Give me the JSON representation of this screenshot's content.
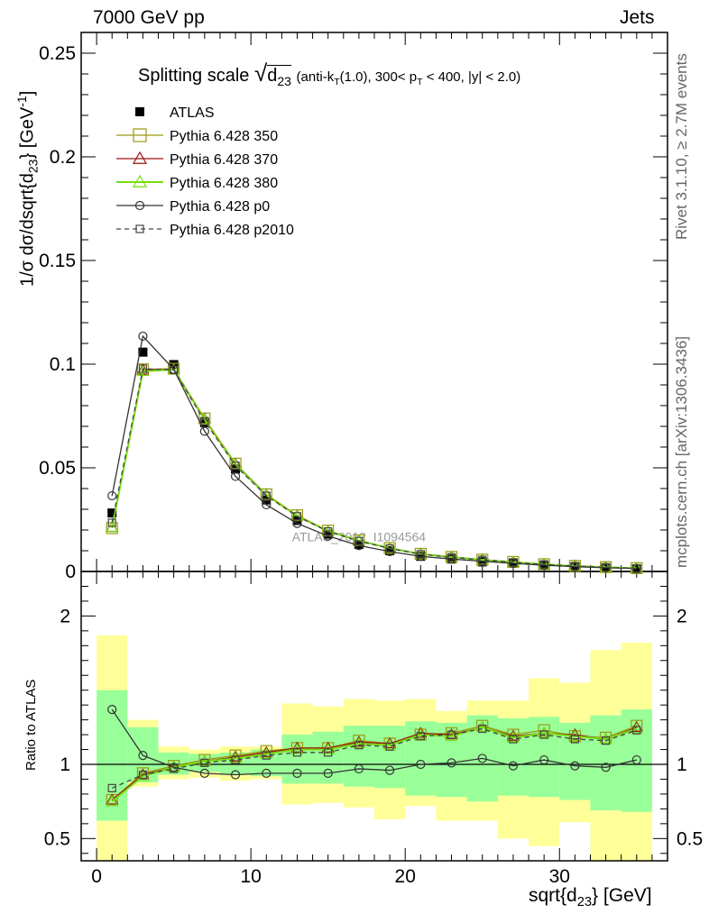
{
  "header": {
    "left": "7000 GeV pp",
    "right": "Jets"
  },
  "side_labels": {
    "top": "Rivet 3.1.10, ≥ 2.7M events",
    "bottom": "mcplots.cern.ch [arXiv:1306.3436]"
  },
  "watermark": "ATLAS_2012_I1094564",
  "chart_data": [
    {
      "type": "line",
      "panel": "main",
      "title": "Splitting scale √d23 (anti-kT(1.0), 300< pT < 400, |y| < 2.0)",
      "title_main": "Splitting scale",
      "title_sub": "(anti-k",
      "ylabel": "1/σ dσ/dsqrt{d23} [GeV-1]",
      "xlabel": "sqrt{d23} [GeV]",
      "xlim": [
        -1,
        37
      ],
      "ylim": [
        0,
        0.26
      ],
      "yticks": [
        0,
        0.05,
        0.1,
        0.15,
        0.2,
        0.25
      ],
      "ytick_labels": [
        "0",
        "0.05",
        "0.1",
        "0.15",
        "0.2",
        "0.25"
      ],
      "xticks": [
        0,
        10,
        20,
        30
      ],
      "xtick_labels": [
        "0",
        "10",
        "20",
        "30"
      ],
      "x": [
        1,
        3,
        5,
        7,
        9,
        11,
        13,
        15,
        17,
        19,
        21,
        23,
        25,
        27,
        29,
        31,
        33,
        35
      ],
      "series": [
        {
          "name": "ATLAS",
          "color": "#000000",
          "marker": "filled-square",
          "line": "none",
          "values": [
            0.0282,
            0.1058,
            0.0998,
            0.0718,
            0.0494,
            0.0345,
            0.0246,
            0.018,
            0.013,
            0.01,
            0.0073,
            0.006,
            0.0046,
            0.0039,
            0.0029,
            0.0023,
            0.0018,
            0.0013
          ]
        },
        {
          "name": "Pythia 6.428 350",
          "color": "#9a9a10",
          "marker": "open-square",
          "line": "solid",
          "values": [
            0.0209,
            0.0975,
            0.0978,
            0.0738,
            0.052,
            0.0372,
            0.0271,
            0.0197,
            0.015,
            0.0113,
            0.0085,
            0.007,
            0.0057,
            0.0046,
            0.0035,
            0.0027,
            0.0021,
            0.0016
          ]
        },
        {
          "name": "Pythia 6.428 370",
          "color": "#9b1111",
          "marker": "open-triangle",
          "line": "solid",
          "values": [
            0.0213,
            0.0972,
            0.0975,
            0.0735,
            0.0518,
            0.037,
            0.027,
            0.0196,
            0.0149,
            0.0113,
            0.0085,
            0.007,
            0.0057,
            0.0045,
            0.0034,
            0.0027,
            0.0021,
            0.0016
          ]
        },
        {
          "name": "Pythia 6.428 380",
          "color": "#77dd11",
          "marker": "open-triangle",
          "line": "solid",
          "values": [
            0.0212,
            0.0965,
            0.0974,
            0.0732,
            0.0515,
            0.0368,
            0.0268,
            0.0195,
            0.0148,
            0.0112,
            0.0084,
            0.0069,
            0.0056,
            0.0045,
            0.0034,
            0.0026,
            0.002,
            0.0016
          ]
        },
        {
          "name": "Pythia 6.428 p0",
          "color": "#333333",
          "marker": "open-circle",
          "line": "solid",
          "values": [
            0.0365,
            0.1135,
            0.0975,
            0.0676,
            0.0459,
            0.0322,
            0.0232,
            0.0171,
            0.0125,
            0.0096,
            0.0073,
            0.006,
            0.0049,
            0.0039,
            0.003,
            0.0023,
            0.0018,
            0.0014
          ]
        },
        {
          "name": "Pythia 6.428 p2010",
          "color": "#444444",
          "marker": "open-square",
          "line": "dashed",
          "values": [
            0.0235,
            0.0978,
            0.0972,
            0.0725,
            0.051,
            0.0365,
            0.0266,
            0.0193,
            0.0147,
            0.0111,
            0.0083,
            0.0068,
            0.0056,
            0.0044,
            0.0034,
            0.0026,
            0.002,
            0.0015
          ]
        }
      ]
    },
    {
      "type": "line",
      "panel": "ratio",
      "ylabel": "Ratio to ATLAS",
      "xlabel": "sqrt{d23} [GeV]",
      "xlim": [
        -1,
        37
      ],
      "ylim": [
        0.35,
        2.3
      ],
      "yticks": [
        0.5,
        1,
        2
      ],
      "ytick_labels": [
        "0.5",
        "1",
        "2"
      ],
      "xticks": [
        0,
        10,
        20,
        30
      ],
      "xtick_labels": [
        "0",
        "10",
        "20",
        "30"
      ],
      "bins": [
        [
          0,
          2
        ],
        [
          2,
          4
        ],
        [
          4,
          6
        ],
        [
          6,
          8
        ],
        [
          8,
          10
        ],
        [
          10,
          12
        ],
        [
          12,
          14
        ],
        [
          14,
          16
        ],
        [
          16,
          18
        ],
        [
          18,
          20
        ],
        [
          20,
          22
        ],
        [
          22,
          24
        ],
        [
          24,
          26
        ],
        [
          26,
          28
        ],
        [
          28,
          30
        ],
        [
          30,
          32
        ],
        [
          32,
          34
        ],
        [
          34,
          36
        ]
      ],
      "band_inner": [
        [
          0.62,
          1.5
        ],
        [
          0.88,
          1.25
        ],
        [
          0.93,
          1.08
        ],
        [
          0.95,
          1.07
        ],
        [
          0.93,
          1.08
        ],
        [
          0.92,
          1.1
        ],
        [
          0.87,
          1.2
        ],
        [
          0.87,
          1.22
        ],
        [
          0.85,
          1.26
        ],
        [
          0.84,
          1.26
        ],
        [
          0.79,
          1.29
        ],
        [
          0.78,
          1.28
        ],
        [
          0.75,
          1.33
        ],
        [
          0.79,
          1.31
        ],
        [
          0.78,
          1.32
        ],
        [
          0.76,
          1.28
        ],
        [
          0.69,
          1.33
        ],
        [
          0.68,
          1.37
        ]
      ],
      "band_outer": [
        [
          0.35,
          1.87
        ],
        [
          0.85,
          1.3
        ],
        [
          0.9,
          1.12
        ],
        [
          0.91,
          1.1
        ],
        [
          0.89,
          1.12
        ],
        [
          0.9,
          1.12
        ],
        [
          0.73,
          1.41
        ],
        [
          0.74,
          1.39
        ],
        [
          0.71,
          1.44
        ],
        [
          0.63,
          1.43
        ],
        [
          0.72,
          1.44
        ],
        [
          0.62,
          1.36
        ],
        [
          0.62,
          1.43
        ],
        [
          0.5,
          1.43
        ],
        [
          0.45,
          1.58
        ],
        [
          0.61,
          1.55
        ],
        [
          0.35,
          1.77
        ],
        [
          0.35,
          1.82
        ]
      ],
      "series": [
        {
          "name": "Pythia 6.428 350",
          "color": "#9a9a10",
          "marker": "open-square",
          "line": "solid",
          "values": [
            0.76,
            0.94,
            0.99,
            1.03,
            1.06,
            1.09,
            1.11,
            1.11,
            1.16,
            1.14,
            1.2,
            1.21,
            1.26,
            1.2,
            1.23,
            1.19,
            1.18,
            1.26
          ]
        },
        {
          "name": "Pythia 6.428 370",
          "color": "#9b1111",
          "marker": "open-triangle",
          "line": "solid",
          "values": [
            0.76,
            0.93,
            0.98,
            1.02,
            1.05,
            1.08,
            1.11,
            1.11,
            1.15,
            1.14,
            1.21,
            1.2,
            1.25,
            1.19,
            1.21,
            1.2,
            1.17,
            1.25
          ]
        },
        {
          "name": "Pythia 6.428 380",
          "color": "#77dd11",
          "marker": "open-triangle",
          "line": "solid",
          "values": [
            0.75,
            0.92,
            0.98,
            1.02,
            1.04,
            1.07,
            1.1,
            1.1,
            1.14,
            1.13,
            1.2,
            1.19,
            1.25,
            1.18,
            1.21,
            1.19,
            1.17,
            1.24
          ]
        },
        {
          "name": "Pythia 6.428 p0",
          "color": "#333333",
          "marker": "open-circle",
          "line": "solid",
          "values": [
            1.37,
            1.06,
            0.98,
            0.94,
            0.93,
            0.94,
            0.94,
            0.94,
            0.97,
            0.96,
            1.0,
            1.01,
            1.04,
            0.99,
            1.03,
            0.99,
            0.98,
            1.03
          ]
        },
        {
          "name": "Pythia 6.428 p2010",
          "color": "#444444",
          "marker": "open-square",
          "line": "dashed",
          "values": [
            0.84,
            0.93,
            0.97,
            1.01,
            1.03,
            1.06,
            1.08,
            1.08,
            1.13,
            1.12,
            1.19,
            1.2,
            1.24,
            1.17,
            1.2,
            1.17,
            1.16,
            1.23
          ]
        }
      ]
    }
  ]
}
